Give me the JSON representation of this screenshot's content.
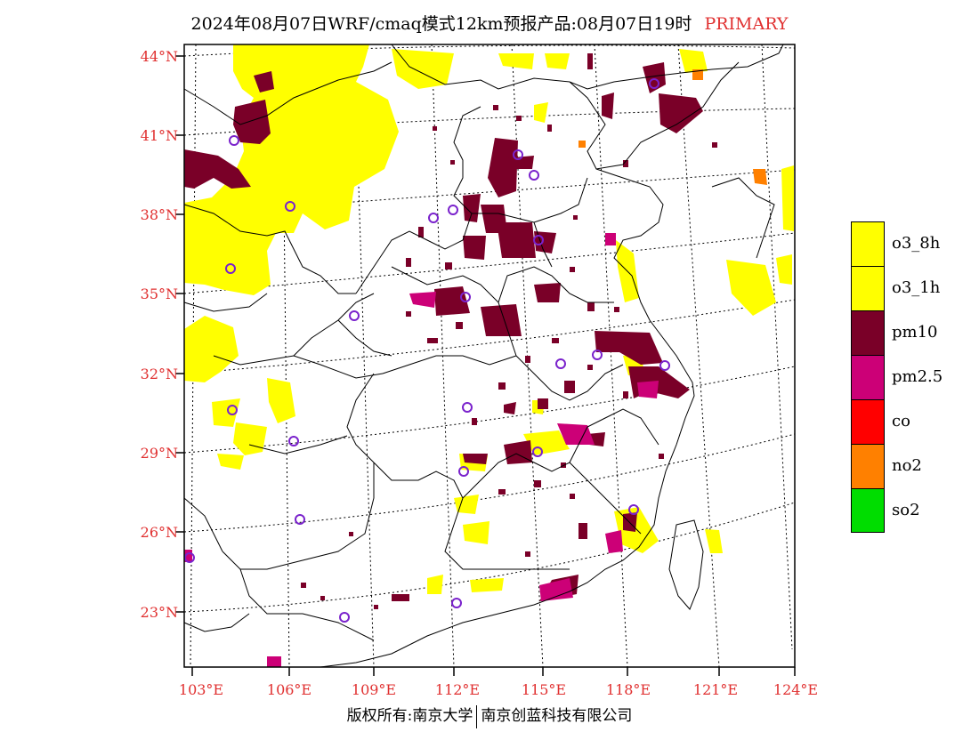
{
  "title": {
    "text": "2024年08月07日WRF/cmaq模式12km预报产品:08月07日19时",
    "tag": "PRIMARY"
  },
  "axes": {
    "lat_labels": [
      "44°N",
      "41°N",
      "38°N",
      "35°N",
      "32°N",
      "29°N",
      "26°N",
      "23°N"
    ],
    "lon_labels": [
      "103°E",
      "106°E",
      "109°E",
      "112°E",
      "115°E",
      "118°E",
      "121°E",
      "124°E"
    ]
  },
  "legend": [
    {
      "label": "o3_8h",
      "color": "#ffff00"
    },
    {
      "label": "o3_1h",
      "color": "#ffff00"
    },
    {
      "label": "pm10",
      "color": "#7a0028"
    },
    {
      "label": "pm2.5",
      "color": "#cc0077"
    },
    {
      "label": "co",
      "color": "#ff0000"
    },
    {
      "label": "no2",
      "color": "#ff8000"
    },
    {
      "label": "so2",
      "color": "#00dd00"
    }
  ],
  "colors": {
    "label_red": "#e03030",
    "station_ring": "#7a22cc"
  },
  "footer": {
    "left": "版权所有:南京大学",
    "right": "南京创蓝科技有限公司"
  }
}
